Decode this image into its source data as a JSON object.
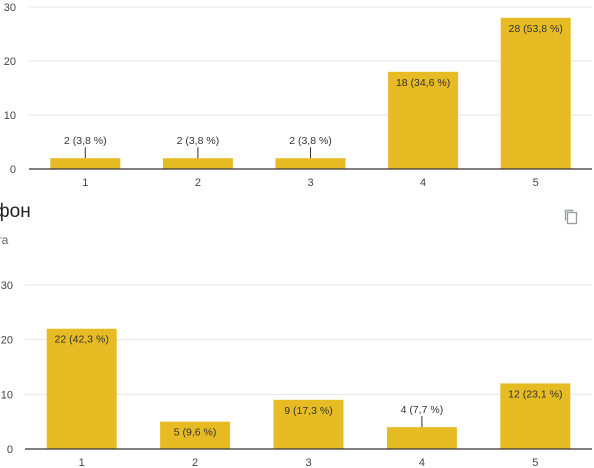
{
  "colors": {
    "bar": "#e6bb24",
    "grid": "#e6e6e6",
    "axis": "#333333",
    "tick_text": "#444444",
    "label_text": "#333333"
  },
  "section": {
    "title": "фон",
    "subtitle": "ета",
    "copy_icon": "copy-icon"
  },
  "chart_data": [
    {
      "type": "bar",
      "categories": [
        "1",
        "2",
        "3",
        "4",
        "5"
      ],
      "values": [
        2,
        2,
        2,
        18,
        28
      ],
      "data_labels": [
        "2 (3,8 %)",
        "2 (3,8 %)",
        "2 (3,8 %)",
        "18 (34,6 %)",
        "28 (53,8 %)"
      ],
      "ylim": [
        0,
        30
      ],
      "yticks": [
        0,
        10,
        20,
        30
      ],
      "grid": true
    },
    {
      "type": "bar",
      "categories": [
        "1",
        "2",
        "3",
        "4",
        "5"
      ],
      "values": [
        22,
        5,
        9,
        4,
        12
      ],
      "data_labels": [
        "22 (42,3 %)",
        "5 (9,6 %)",
        "9 (17,3 %)",
        "4 (7,7 %)",
        "12 (23,1 %)"
      ],
      "ylim": [
        0,
        30
      ],
      "yticks": [
        0,
        10,
        20,
        30
      ],
      "grid": true
    }
  ]
}
